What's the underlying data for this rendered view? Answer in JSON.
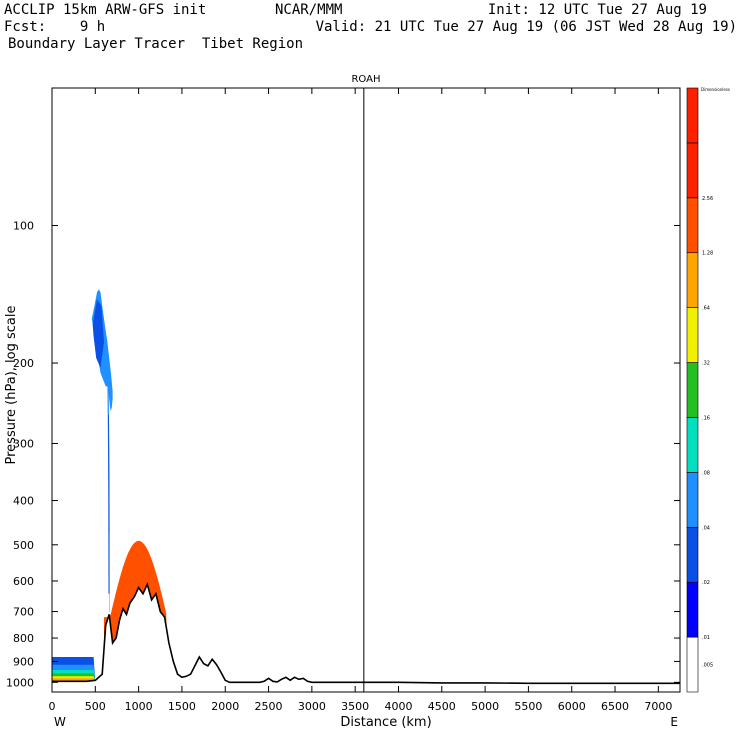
{
  "header": {
    "line1_left": "ACCLIP 15km ARW-GFS init",
    "line1_center": "NCAR/MMM",
    "line1_right": "Init: 12 UTC Tue 27 Aug 19",
    "line2_left": "Fcst:    9 h",
    "line2_right": "Valid: 21 UTC Tue 27 Aug 19 (06 JST Wed 28 Aug 19)",
    "line3_left": "Boundary Layer Tracer  Tibet Region"
  },
  "chart_data": {
    "type": "area",
    "title": "ROAH",
    "xlabel": "Distance (km)",
    "ylabel": "Pressure (hPa), log scale",
    "x_ticks": [
      0,
      500,
      1000,
      1500,
      2000,
      2500,
      3000,
      3500,
      4000,
      4500,
      5000,
      5500,
      6000,
      6500,
      7000
    ],
    "y_ticks": [
      100,
      200,
      300,
      400,
      500,
      600,
      700,
      800,
      900,
      1000
    ],
    "xlim": [
      0,
      7250
    ],
    "ylim": [
      50,
      1050
    ],
    "y_scale": "log",
    "x_end_labels": {
      "left": "W",
      "right": "E"
    },
    "vertical_line_x": 3600,
    "colorbar": {
      "title": "Dimensionless",
      "levels": [
        ".005",
        ".01",
        ".02",
        ".04",
        ".08",
        ".16",
        ".32",
        ".64",
        "1.28",
        "2.56"
      ],
      "colors": [
        "#ffffff",
        "#0000ff",
        "#0a50e6",
        "#1e90ff",
        "#00e0c0",
        "#22c022",
        "#f0f000",
        "#ffa500",
        "#ff5000",
        "#ff2000"
      ]
    },
    "terrain": {
      "x": [
        0,
        100,
        200,
        300,
        400,
        500,
        580,
        620,
        660,
        700,
        740,
        780,
        820,
        860,
        900,
        950,
        1000,
        1050,
        1100,
        1150,
        1200,
        1250,
        1300,
        1350,
        1400,
        1450,
        1500,
        1550,
        1600,
        1650,
        1700,
        1750,
        1800,
        1850,
        1900,
        1950,
        2000,
        2050,
        2100,
        2200,
        2300,
        2400,
        2450,
        2500,
        2550,
        2600,
        2650,
        2700,
        2750,
        2800,
        2850,
        2900,
        2950,
        3000,
        3200,
        3600,
        4000,
        4500,
        5000,
        5500,
        6000,
        6500,
        7000,
        7250
      ],
      "p": [
        995,
        995,
        995,
        995,
        995,
        990,
        960,
        750,
        710,
        820,
        800,
        730,
        690,
        710,
        670,
        650,
        620,
        640,
        610,
        660,
        640,
        700,
        720,
        820,
        900,
        960,
        975,
        970,
        960,
        920,
        880,
        910,
        920,
        890,
        915,
        950,
        990,
        1000,
        1000,
        1000,
        1000,
        1000,
        995,
        980,
        995,
        998,
        985,
        975,
        990,
        975,
        985,
        980,
        995,
        1000,
        1000,
        1000,
        1000,
        1003,
        1003,
        1005,
        1005,
        1005,
        1005,
        1005
      ]
    },
    "tracer_high": {
      "level": ".04",
      "x": [
        460,
        490,
        520,
        540,
        560,
        580,
        600,
        620,
        640,
        660,
        680,
        700,
        700,
        690,
        680,
        670,
        660,
        650,
        640,
        620,
        600,
        580,
        560,
        540,
        520,
        500,
        480,
        460
      ],
      "p": [
        160,
        150,
        140,
        138,
        140,
        150,
        160,
        170,
        180,
        195,
        210,
        230,
        240,
        250,
        255,
        250,
        240,
        230,
        225,
        225,
        220,
        215,
        210,
        200,
        190,
        180,
        170,
        160
      ]
    },
    "tracer_column": {
      "level": ".04",
      "x": [
        640,
        655,
        665,
        670,
        665,
        660,
        650,
        640
      ],
      "p": [
        225,
        230,
        350,
        700,
        700,
        500,
        350,
        225
      ]
    },
    "tracer_lower": {
      "level_bands": [
        ".02",
        ".04",
        ".08",
        ".16",
        ".32",
        ".64",
        "1.28"
      ],
      "peak_x": 1000,
      "peak_p": 490
    },
    "tracer_west": {
      "x": [
        0,
        480
      ],
      "p_top": 880
    }
  }
}
